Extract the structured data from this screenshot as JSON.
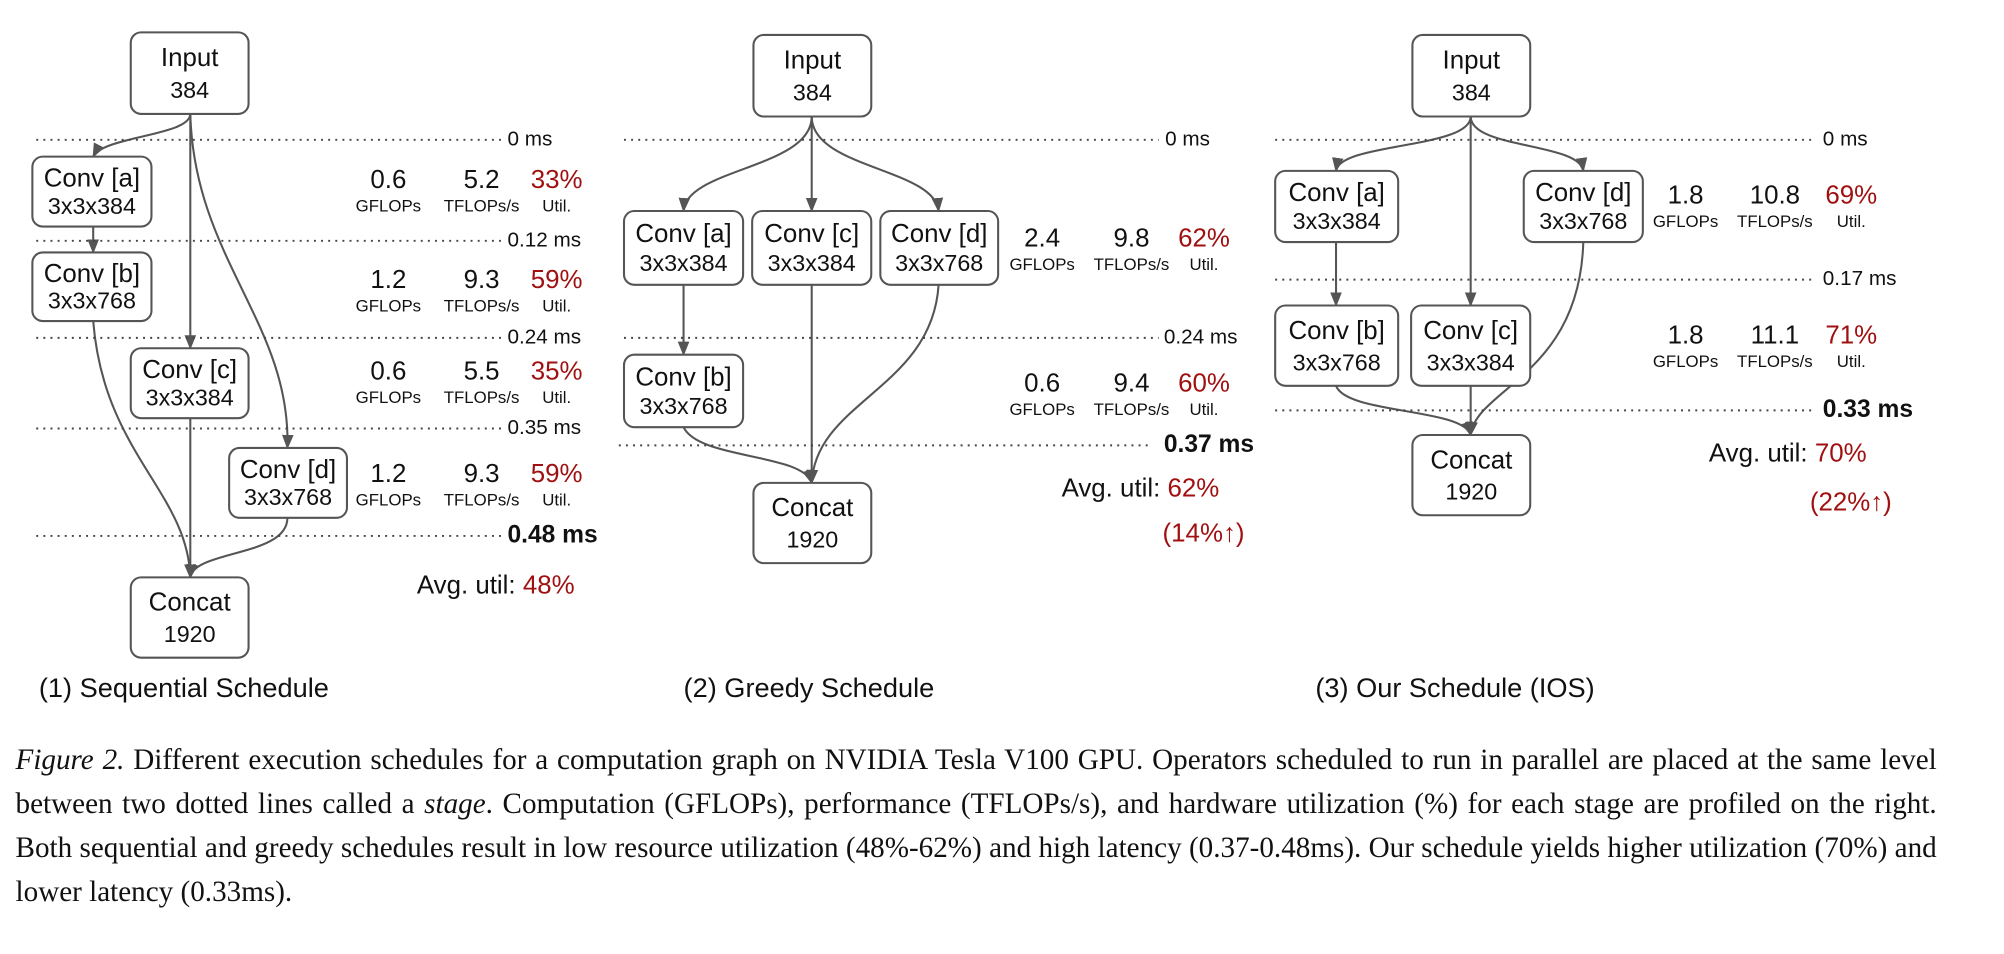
{
  "panels": [
    {
      "label": "(1) Sequential Schedule",
      "nodes": [
        {
          "name": "Input",
          "detail": "384"
        },
        {
          "name": "Conv [a]",
          "detail": "3x3x384"
        },
        {
          "name": "Conv [b]",
          "detail": "3x3x768"
        },
        {
          "name": "Conv [c]",
          "detail": "3x3x384"
        },
        {
          "name": "Conv [d]",
          "detail": "3x3x768"
        },
        {
          "name": "Concat",
          "detail": "1920"
        }
      ],
      "times": [
        "0 ms",
        "0.12 ms",
        "0.24 ms",
        "0.35 ms",
        "0.48 ms"
      ],
      "units": {
        "gflops": "GFLOPs",
        "tflops": "TFLOPs/s",
        "util": "Util."
      },
      "stages": [
        {
          "gflops": "0.6",
          "tflops": "5.2",
          "util": "33%"
        },
        {
          "gflops": "1.2",
          "tflops": "9.3",
          "util": "59%"
        },
        {
          "gflops": "0.6",
          "tflops": "5.5",
          "util": "35%"
        },
        {
          "gflops": "1.2",
          "tflops": "9.3",
          "util": "59%"
        }
      ],
      "avg_label": "Avg. util:",
      "avg": "48%"
    },
    {
      "label": "(2) Greedy Schedule",
      "nodes": [
        {
          "name": "Input",
          "detail": "384"
        },
        {
          "name": "Conv [a]",
          "detail": "3x3x384"
        },
        {
          "name": "Conv [c]",
          "detail": "3x3x384"
        },
        {
          "name": "Conv [d]",
          "detail": "3x3x768"
        },
        {
          "name": "Conv [b]",
          "detail": "3x3x768"
        },
        {
          "name": "Concat",
          "detail": "1920"
        }
      ],
      "times": [
        "0 ms",
        "0.24 ms",
        "0.37 ms"
      ],
      "units": {
        "gflops": "GFLOPs",
        "tflops": "TFLOPs/s",
        "util": "Util."
      },
      "stages": [
        {
          "gflops": "2.4",
          "tflops": "9.8",
          "util": "62%"
        },
        {
          "gflops": "0.6",
          "tflops": "9.4",
          "util": "60%"
        }
      ],
      "avg_label": "Avg. util:",
      "avg": "62%",
      "gain": "(14%↑)"
    },
    {
      "label": "(3)  Our Schedule (IOS)",
      "nodes": [
        {
          "name": "Input",
          "detail": "384"
        },
        {
          "name": "Conv [a]",
          "detail": "3x3x384"
        },
        {
          "name": "Conv [d]",
          "detail": "3x3x768"
        },
        {
          "name": "Conv [b]",
          "detail": "3x3x768"
        },
        {
          "name": "Conv [c]",
          "detail": "3x3x384"
        },
        {
          "name": "Concat",
          "detail": "1920"
        }
      ],
      "times": [
        "0 ms",
        "0.17 ms",
        "0.33 ms"
      ],
      "units": {
        "gflops": "GFLOPs",
        "tflops": "TFLOPs/s",
        "util": "Util."
      },
      "stages": [
        {
          "gflops": "1.8",
          "tflops": "10.8",
          "util": "69%"
        },
        {
          "gflops": "1.8",
          "tflops": "11.1",
          "util": "71%"
        }
      ],
      "avg_label": "Avg. util:",
      "avg": "70%",
      "gain": "(22%↑)"
    }
  ],
  "caption": {
    "lead": "Figure 2.",
    "parts": [
      "Different execution schedules for a computation graph on NVIDIA Tesla V100 GPU. Operators scheduled to run in parallel are placed at the same level between two dotted lines called a ",
      "stage",
      ". Computation (GFLOPs), performance (TFLOPs/s), and hardware utilization (%) for each stage are profiled on the right. Both sequential and greedy schedules result in low resource utilization (48%-62%) and high latency (0.37-0.48ms). Our schedule yields higher utilization (70%) and lower latency (0.33ms)."
    ]
  }
}
